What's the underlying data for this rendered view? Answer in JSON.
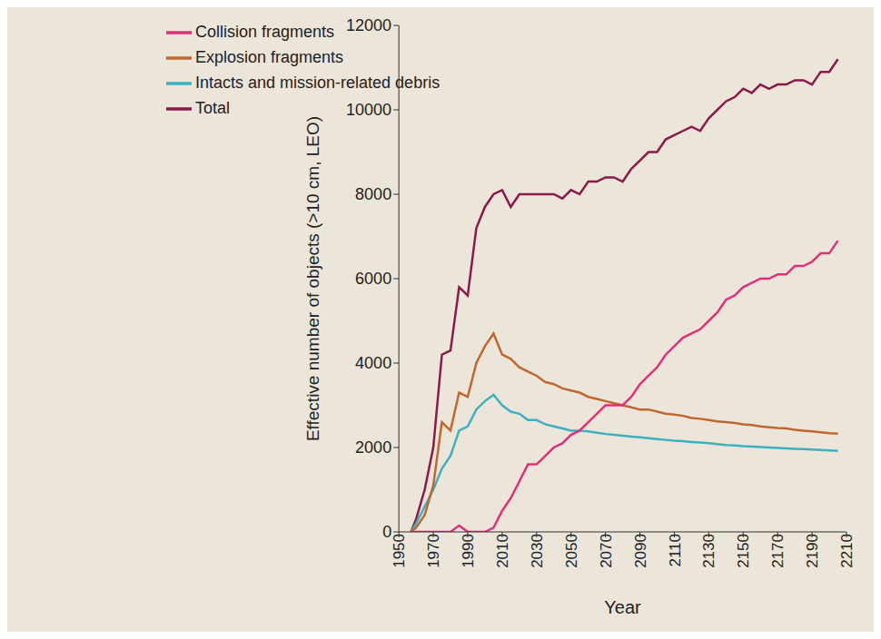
{
  "chart_data": {
    "type": "line",
    "x_label": "Year",
    "y_label": "Effective number of objects (>10 cm, LEO)",
    "x": [
      1957,
      1960,
      1965,
      1970,
      1975,
      1980,
      1985,
      1990,
      1995,
      2000,
      2005,
      2010,
      2015,
      2020,
      2025,
      2030,
      2035,
      2040,
      2045,
      2050,
      2055,
      2060,
      2065,
      2070,
      2075,
      2080,
      2085,
      2090,
      2095,
      2100,
      2105,
      2110,
      2115,
      2120,
      2125,
      2130,
      2135,
      2140,
      2145,
      2150,
      2155,
      2160,
      2165,
      2170,
      2175,
      2180,
      2185,
      2190,
      2195,
      2200,
      2205
    ],
    "series": [
      {
        "name": "Total",
        "color": "#8b1a4a",
        "values": [
          0,
          300,
          1000,
          2000,
          4200,
          4300,
          5800,
          5600,
          7200,
          7700,
          8000,
          8100,
          7700,
          8000,
          8000,
          8000,
          8000,
          8000,
          7900,
          8100,
          8000,
          8300,
          8300,
          8400,
          8400,
          8300,
          8600,
          8800,
          9000,
          9000,
          9300,
          9400,
          9500,
          9600,
          9500,
          9800,
          10000,
          10200,
          10300,
          10500,
          10400,
          10600,
          10500,
          10600,
          10600,
          10700,
          10700,
          10600,
          10900,
          10900,
          11200
        ]
      },
      {
        "name": "Intacts and mission-related debris",
        "color": "#3fb0c0",
        "values": [
          0,
          200,
          600,
          1000,
          1500,
          1800,
          2400,
          2500,
          2900,
          3100,
          3250,
          3000,
          2850,
          2800,
          2650,
          2650,
          2550,
          2500,
          2450,
          2400,
          2400,
          2380,
          2350,
          2320,
          2300,
          2280,
          2260,
          2240,
          2220,
          2200,
          2180,
          2160,
          2150,
          2130,
          2120,
          2100,
          2080,
          2060,
          2050,
          2030,
          2020,
          2010,
          2000,
          1990,
          1980,
          1970,
          1960,
          1950,
          1940,
          1930,
          1920
        ]
      },
      {
        "name": "Explosion fragments",
        "color": "#c0672e",
        "values": [
          0,
          100,
          400,
          1100,
          2600,
          2400,
          3300,
          3200,
          4000,
          4400,
          4700,
          4200,
          4100,
          3900,
          3800,
          3700,
          3550,
          3500,
          3400,
          3350,
          3300,
          3200,
          3150,
          3100,
          3050,
          3000,
          2950,
          2900,
          2900,
          2850,
          2800,
          2780,
          2750,
          2700,
          2680,
          2650,
          2620,
          2600,
          2580,
          2550,
          2530,
          2500,
          2480,
          2460,
          2450,
          2420,
          2400,
          2380,
          2360,
          2340,
          2330
        ]
      },
      {
        "name": "Collision fragments",
        "color": "#e0307a",
        "values": [
          0,
          0,
          0,
          0,
          0,
          0,
          150,
          0,
          0,
          0,
          100,
          500,
          800,
          1200,
          1600,
          1600,
          1800,
          2000,
          2100,
          2300,
          2400,
          2600,
          2800,
          3000,
          3000,
          3000,
          3200,
          3500,
          3700,
          3900,
          4200,
          4400,
          4600,
          4700,
          4800,
          5000,
          5200,
          5500,
          5600,
          5800,
          5900,
          6000,
          6000,
          6100,
          6100,
          6300,
          6300,
          6400,
          6600,
          6600,
          6900
        ]
      }
    ],
    "xlim": [
      1950,
      2210
    ],
    "xticks": [
      1950,
      1970,
      1990,
      2010,
      2030,
      2050,
      2070,
      2090,
      2110,
      2130,
      2150,
      2170,
      2190,
      2210
    ],
    "ylim": [
      0,
      12000
    ],
    "yticks": [
      0,
      2000,
      4000,
      6000,
      8000,
      10000,
      12000
    ],
    "grid": false,
    "legend": "top-left"
  }
}
